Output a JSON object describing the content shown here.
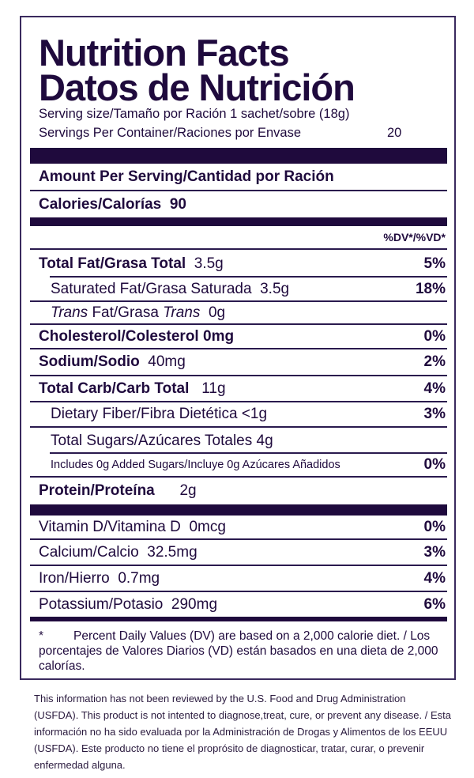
{
  "title_en": "Nutrition Facts",
  "title_es": "Datos de Nutrición",
  "serving_size": "Serving size/Tamaño por Ración 1 sachet/sobre (18g)",
  "servings_label": "Servings Per Container/Raciones por Envase",
  "servings_value": "20",
  "amount_per_serving": "Amount Per Serving/Cantidad por Ración",
  "calories_label": "Calories/Calorías",
  "calories_value": "90",
  "dv_header": "%DV*/%VD*",
  "nutrients": [
    {
      "label": "Total Fat/Grasa Total",
      "amount": "3.5g",
      "dv": "5%"
    },
    {
      "label": "Saturated Fat/Grasa Saturada",
      "amount": "3.5g",
      "dv": "18%"
    },
    {
      "label_italic_1": "Trans",
      "label_mid": " Fat/Grasa ",
      "label_italic_2": "Trans",
      "amount": "0g"
    },
    {
      "label": "Cholesterol/Colesterol",
      "amount": "0mg",
      "dv": "0%"
    },
    {
      "label": "Sodium/Sodio",
      "amount": "40mg",
      "dv": "2%"
    },
    {
      "label": "Total Carb/Carb Total",
      "amount": "11g",
      "dv": "4%"
    },
    {
      "label": "Dietary Fiber/Fibra Dietética",
      "amount": "<1g",
      "dv": "3%"
    },
    {
      "label": "Total Sugars/Azúcares Totales",
      "amount": "4g"
    },
    {
      "label": "Includes 0g Added Sugars/Incluye 0g Azúcares Añadidos",
      "dv": "0%"
    },
    {
      "label": "Protein/Proteína",
      "amount": "2g"
    }
  ],
  "vitamins": [
    {
      "label": "Vitamin D/Vitamina D",
      "amount": "0mcg",
      "dv": "0%"
    },
    {
      "label": "Calcium/Calcio",
      "amount": "32.5mg",
      "dv": "3%"
    },
    {
      "label": "Iron/Hierro",
      "amount": "0.7mg",
      "dv": "4%"
    },
    {
      "label": "Potassium/Potasio",
      "amount": "290mg",
      "dv": "6%"
    }
  ],
  "footnote_star": "*",
  "footnote": "Percent Daily Values (DV) are based on a 2,000 calorie diet. /  Los porcentajes de Valores Diarios (VD) están basados en una dieta de 2,000 calorías.",
  "disclaimer": "This information has not been reviewed by the U.S. Food and Drug Administration (USFDA). This product is not intented to diagnose,treat, cure, or prevent any disease. / Esta información no ha sido evaluada por la Administración de Drogas y Alimentos de los EEUU (USFDA). Este producto no tiene el proprósito de diagnosticar, tratar, curar, o prevenir enfermedad alguna.",
  "colors": {
    "ink": "#1f0a3d"
  }
}
